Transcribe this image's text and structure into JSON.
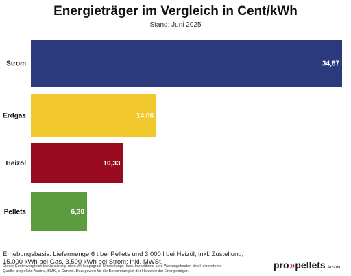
{
  "chart_data": {
    "type": "bar",
    "orientation": "horizontal",
    "title": "Energieträger im Vergleich in Cent/kWh",
    "subtitle": "Stand: Juni 2025",
    "categories": [
      "Strom",
      "Erdgas",
      "Heizöl",
      "Pellets"
    ],
    "values": [
      34.87,
      14.06,
      10.33,
      6.3
    ],
    "value_labels": [
      "34,87",
      "14,06",
      "10,33",
      "6,30"
    ],
    "colors": [
      "#2a3a7c",
      "#f2c92d",
      "#9a0a1e",
      "#5d9b3f"
    ],
    "xlim": [
      0,
      34.87
    ],
    "grid": false,
    "legend": "none"
  },
  "footer": {
    "basis": "Erhebungsbasis: Liefermenge 6 t bei Pellets und 3.000 l bei Heizöl, inkl. Zustellung; 15.000 kWh bei Gas, 3.500 kWh bei Strom; inkl. MWSt.",
    "note_line1": "Dieser Kostenvergleich berücksichtigt nicht Wirkungsgrad, Umstellungs- bzw. Investitions- und Wartungskosten des Heizsystems |",
    "note_line2": "Quelle: propellets Austria, BMK, e-Control. Bezugswert für die Berechnung ist der Heizwert der Energieträger."
  },
  "logo": {
    "word1": "pro",
    "arrows": "»",
    "word2": "pellets",
    "country": "Austria"
  }
}
